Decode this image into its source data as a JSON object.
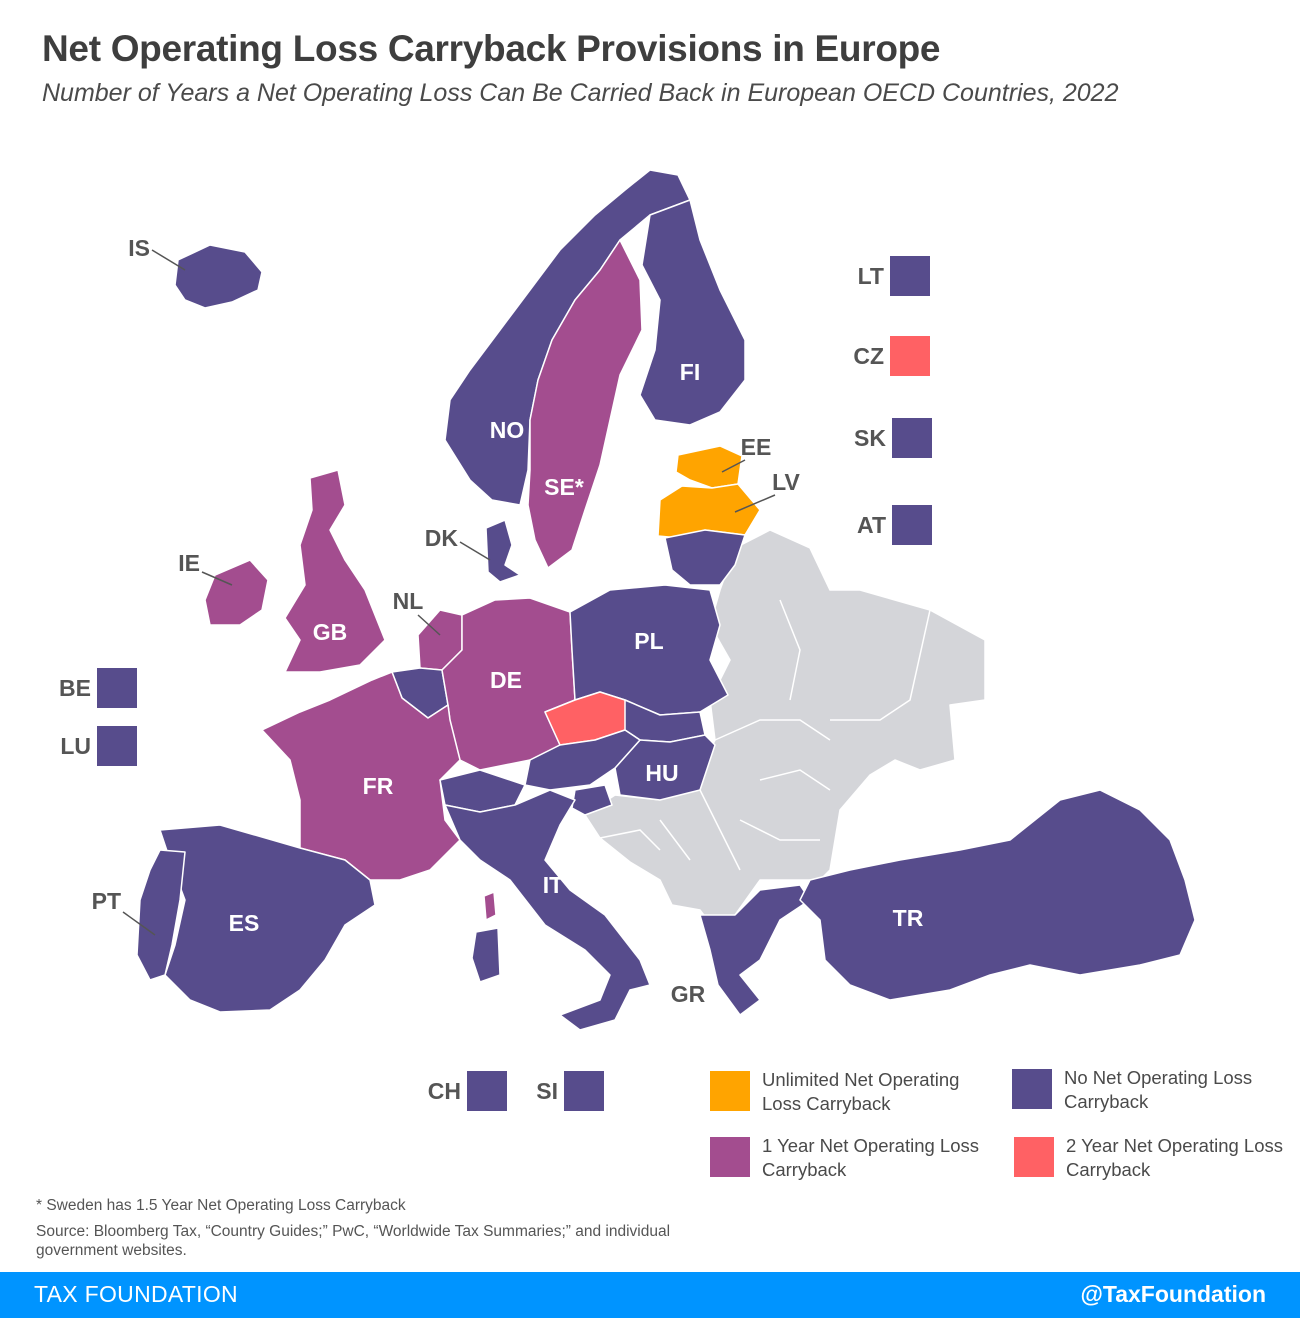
{
  "title": "Net Operating Loss Carryback Provisions in Europe",
  "subtitle": "Number of Years a Net Operating Loss Can Be Carried Back in European OECD Countries, 2022",
  "colors": {
    "unlimited": "#ffa400",
    "none": "#574c8c",
    "one_year": "#a34d8f",
    "two_year": "#ff6164",
    "non_oecd": "#d4d5d9"
  },
  "map_labels": {
    "IS": "IS",
    "NO": "NO",
    "SE": "SE*",
    "FI": "FI",
    "EE": "EE",
    "LV": "LV",
    "DK": "DK",
    "IE": "IE",
    "GB": "GB",
    "NL": "NL",
    "DE": "DE",
    "PL": "PL",
    "FR": "FR",
    "HU": "HU",
    "IT": "IT",
    "PT": "PT",
    "ES": "ES",
    "GR": "GR",
    "TR": "TR"
  },
  "small_countries": [
    {
      "code": "LT",
      "category": "none"
    },
    {
      "code": "CZ",
      "category": "two_year"
    },
    {
      "code": "SK",
      "category": "none"
    },
    {
      "code": "AT",
      "category": "none"
    },
    {
      "code": "BE",
      "category": "none"
    },
    {
      "code": "LU",
      "category": "none"
    },
    {
      "code": "CH",
      "category": "none"
    },
    {
      "code": "SI",
      "category": "none"
    }
  ],
  "legend": {
    "unlimited": "Unlimited Net Operating Loss Carryback",
    "none": "No Net Operating Loss Carryback",
    "one_year": "1 Year Net Operating Loss Carryback",
    "two_year": "2 Year Net Operating Loss Carryback"
  },
  "footnote": "* Sweden has 1.5 Year Net Operating Loss Carryback",
  "source": "Source: Bloomberg Tax, “Country Guides;” PwC, “Worldwide Tax Summaries;” and individual government websites.",
  "footer": {
    "brand": "TAX FOUNDATION",
    "handle": "@TaxFoundation"
  }
}
